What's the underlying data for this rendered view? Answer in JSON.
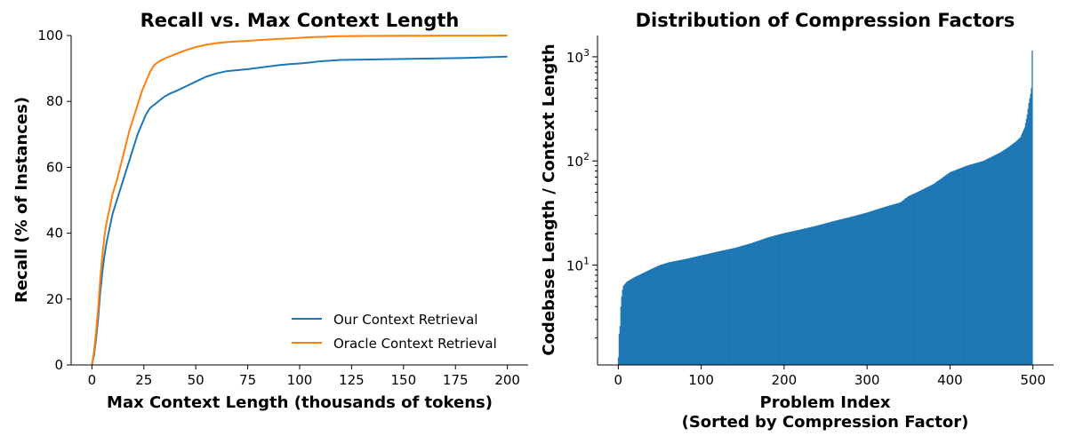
{
  "chart_data": [
    {
      "type": "line",
      "title": "Recall vs. Max Context Length",
      "xlabel": "Max Context Length (thousands of tokens)",
      "ylabel": "Recall (% of Instances)",
      "xlim": [
        -10,
        210
      ],
      "ylim": [
        0,
        100
      ],
      "xticks": [
        0,
        25,
        50,
        75,
        100,
        125,
        150,
        175,
        200
      ],
      "yticks": [
        0,
        20,
        40,
        60,
        80,
        100
      ],
      "grid": false,
      "legend": "bottom-right",
      "series": [
        {
          "name": "Our Context Retrieval",
          "color": "#1f77b4",
          "x": [
            0,
            1,
            2,
            3,
            4,
            5,
            6,
            7,
            8,
            9,
            10,
            12,
            14,
            16,
            18,
            20,
            22,
            24,
            26,
            28,
            30,
            32,
            35,
            38,
            40,
            45,
            50,
            55,
            60,
            65,
            70,
            75,
            80,
            85,
            90,
            95,
            100,
            105,
            110,
            115,
            120,
            130,
            140,
            150,
            160,
            170,
            180,
            190,
            200
          ],
          "y": [
            0,
            3,
            8,
            14,
            22,
            28,
            33,
            37,
            40,
            43,
            46,
            50,
            54,
            58,
            62,
            66,
            70,
            73,
            76,
            78,
            79,
            80,
            81.5,
            82.5,
            83,
            84.5,
            86,
            87.5,
            88.5,
            89.2,
            89.5,
            89.8,
            90.2,
            90.6,
            91,
            91.3,
            91.5,
            91.8,
            92.2,
            92.4,
            92.6,
            92.7,
            92.8,
            92.9,
            93,
            93.1,
            93.2,
            93.4,
            93.6
          ]
        },
        {
          "name": "Oracle Context Retrieval",
          "color": "#ff7f0e",
          "x": [
            0,
            1,
            2,
            3,
            4,
            5,
            6,
            7,
            8,
            9,
            10,
            12,
            14,
            16,
            18,
            20,
            22,
            24,
            26,
            28,
            30,
            32,
            35,
            38,
            40,
            45,
            50,
            55,
            60,
            65,
            70,
            75,
            80,
            85,
            90,
            95,
            100,
            105,
            110,
            115,
            120,
            130,
            140,
            150,
            160,
            170,
            180,
            190,
            200
          ],
          "y": [
            0,
            4,
            10,
            17,
            26,
            33,
            39,
            43,
            46,
            49,
            52,
            56,
            61,
            66,
            71,
            75,
            79,
            83,
            86,
            89,
            91,
            92,
            93,
            93.8,
            94.3,
            95.5,
            96.5,
            97.2,
            97.7,
            98,
            98.2,
            98.4,
            98.6,
            98.8,
            99,
            99.1,
            99.3,
            99.5,
            99.6,
            99.7,
            99.8,
            99.85,
            99.9,
            99.92,
            99.94,
            99.96,
            99.97,
            99.98,
            100
          ]
        }
      ]
    },
    {
      "type": "bar",
      "title": "Distribution of Compression Factors",
      "xlabel": "Problem Index",
      "xlabel2": "(Sorted by Compression Factor)",
      "ylabel": "Codebase Length / Context Length",
      "yscale": "log",
      "ylim": [
        1.1,
        1600
      ],
      "xlim": [
        -25,
        525
      ],
      "xticks": [
        0,
        100,
        200,
        300,
        400,
        500
      ],
      "yticks": [
        {
          "value": 10,
          "base": "10",
          "exp": "1"
        },
        {
          "value": 100,
          "base": "10",
          "exp": "2"
        },
        {
          "value": 1000,
          "base": "10",
          "exp": "3"
        }
      ],
      "grid": false,
      "color": "#1f77b4",
      "n_bars": 500,
      "curve": {
        "index": [
          0,
          1,
          2,
          3,
          4,
          5,
          6,
          8,
          10,
          15,
          20,
          30,
          40,
          50,
          60,
          70,
          80,
          100,
          120,
          140,
          160,
          180,
          200,
          220,
          240,
          260,
          280,
          300,
          320,
          340,
          350,
          360,
          380,
          400,
          420,
          440,
          460,
          470,
          480,
          485,
          490,
          493,
          495,
          497,
          498,
          499
        ],
        "value": [
          1.3,
          2.2,
          2.6,
          4.0,
          5.0,
          5.8,
          6.3,
          6.6,
          6.9,
          7.3,
          7.7,
          8.4,
          9.2,
          10.0,
          10.6,
          11.0,
          11.4,
          12.4,
          13.5,
          14.6,
          16.2,
          18.4,
          20.3,
          22.0,
          24.0,
          26.5,
          29.0,
          32.0,
          36.0,
          40.0,
          46.0,
          50.0,
          60.0,
          78.0,
          90.0,
          100.0,
          120.0,
          135.0,
          155.0,
          170.0,
          210.0,
          280.0,
          360.0,
          440.0,
          500.0,
          1150.0
        ]
      }
    }
  ]
}
